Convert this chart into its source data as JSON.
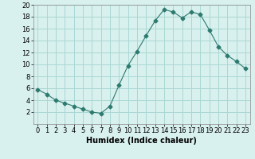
{
  "x": [
    0,
    1,
    2,
    3,
    4,
    5,
    6,
    7,
    8,
    9,
    10,
    11,
    12,
    13,
    14,
    15,
    16,
    17,
    18,
    19,
    20,
    21,
    22,
    23
  ],
  "y": [
    5.8,
    5.0,
    4.0,
    3.5,
    3.0,
    2.5,
    2.0,
    1.8,
    3.0,
    6.5,
    9.8,
    12.2,
    14.8,
    17.3,
    19.2,
    18.8,
    17.8,
    18.8,
    18.4,
    15.8,
    13.0,
    11.5,
    10.5,
    9.3
  ],
  "line_color": "#2d7a6e",
  "marker": "D",
  "marker_size": 2.5,
  "bg_color": "#d8f0ee",
  "grid_color": "#aad8d4",
  "xlabel": "Humidex (Indice chaleur)",
  "xlabel_fontsize": 7,
  "tick_fontsize": 6,
  "xlim": [
    -0.5,
    23.5
  ],
  "ylim": [
    0,
    20
  ],
  "yticks": [
    2,
    4,
    6,
    8,
    10,
    12,
    14,
    16,
    18,
    20
  ],
  "xticks": [
    0,
    1,
    2,
    3,
    4,
    5,
    6,
    7,
    8,
    9,
    10,
    11,
    12,
    13,
    14,
    15,
    16,
    17,
    18,
    19,
    20,
    21,
    22,
    23
  ]
}
